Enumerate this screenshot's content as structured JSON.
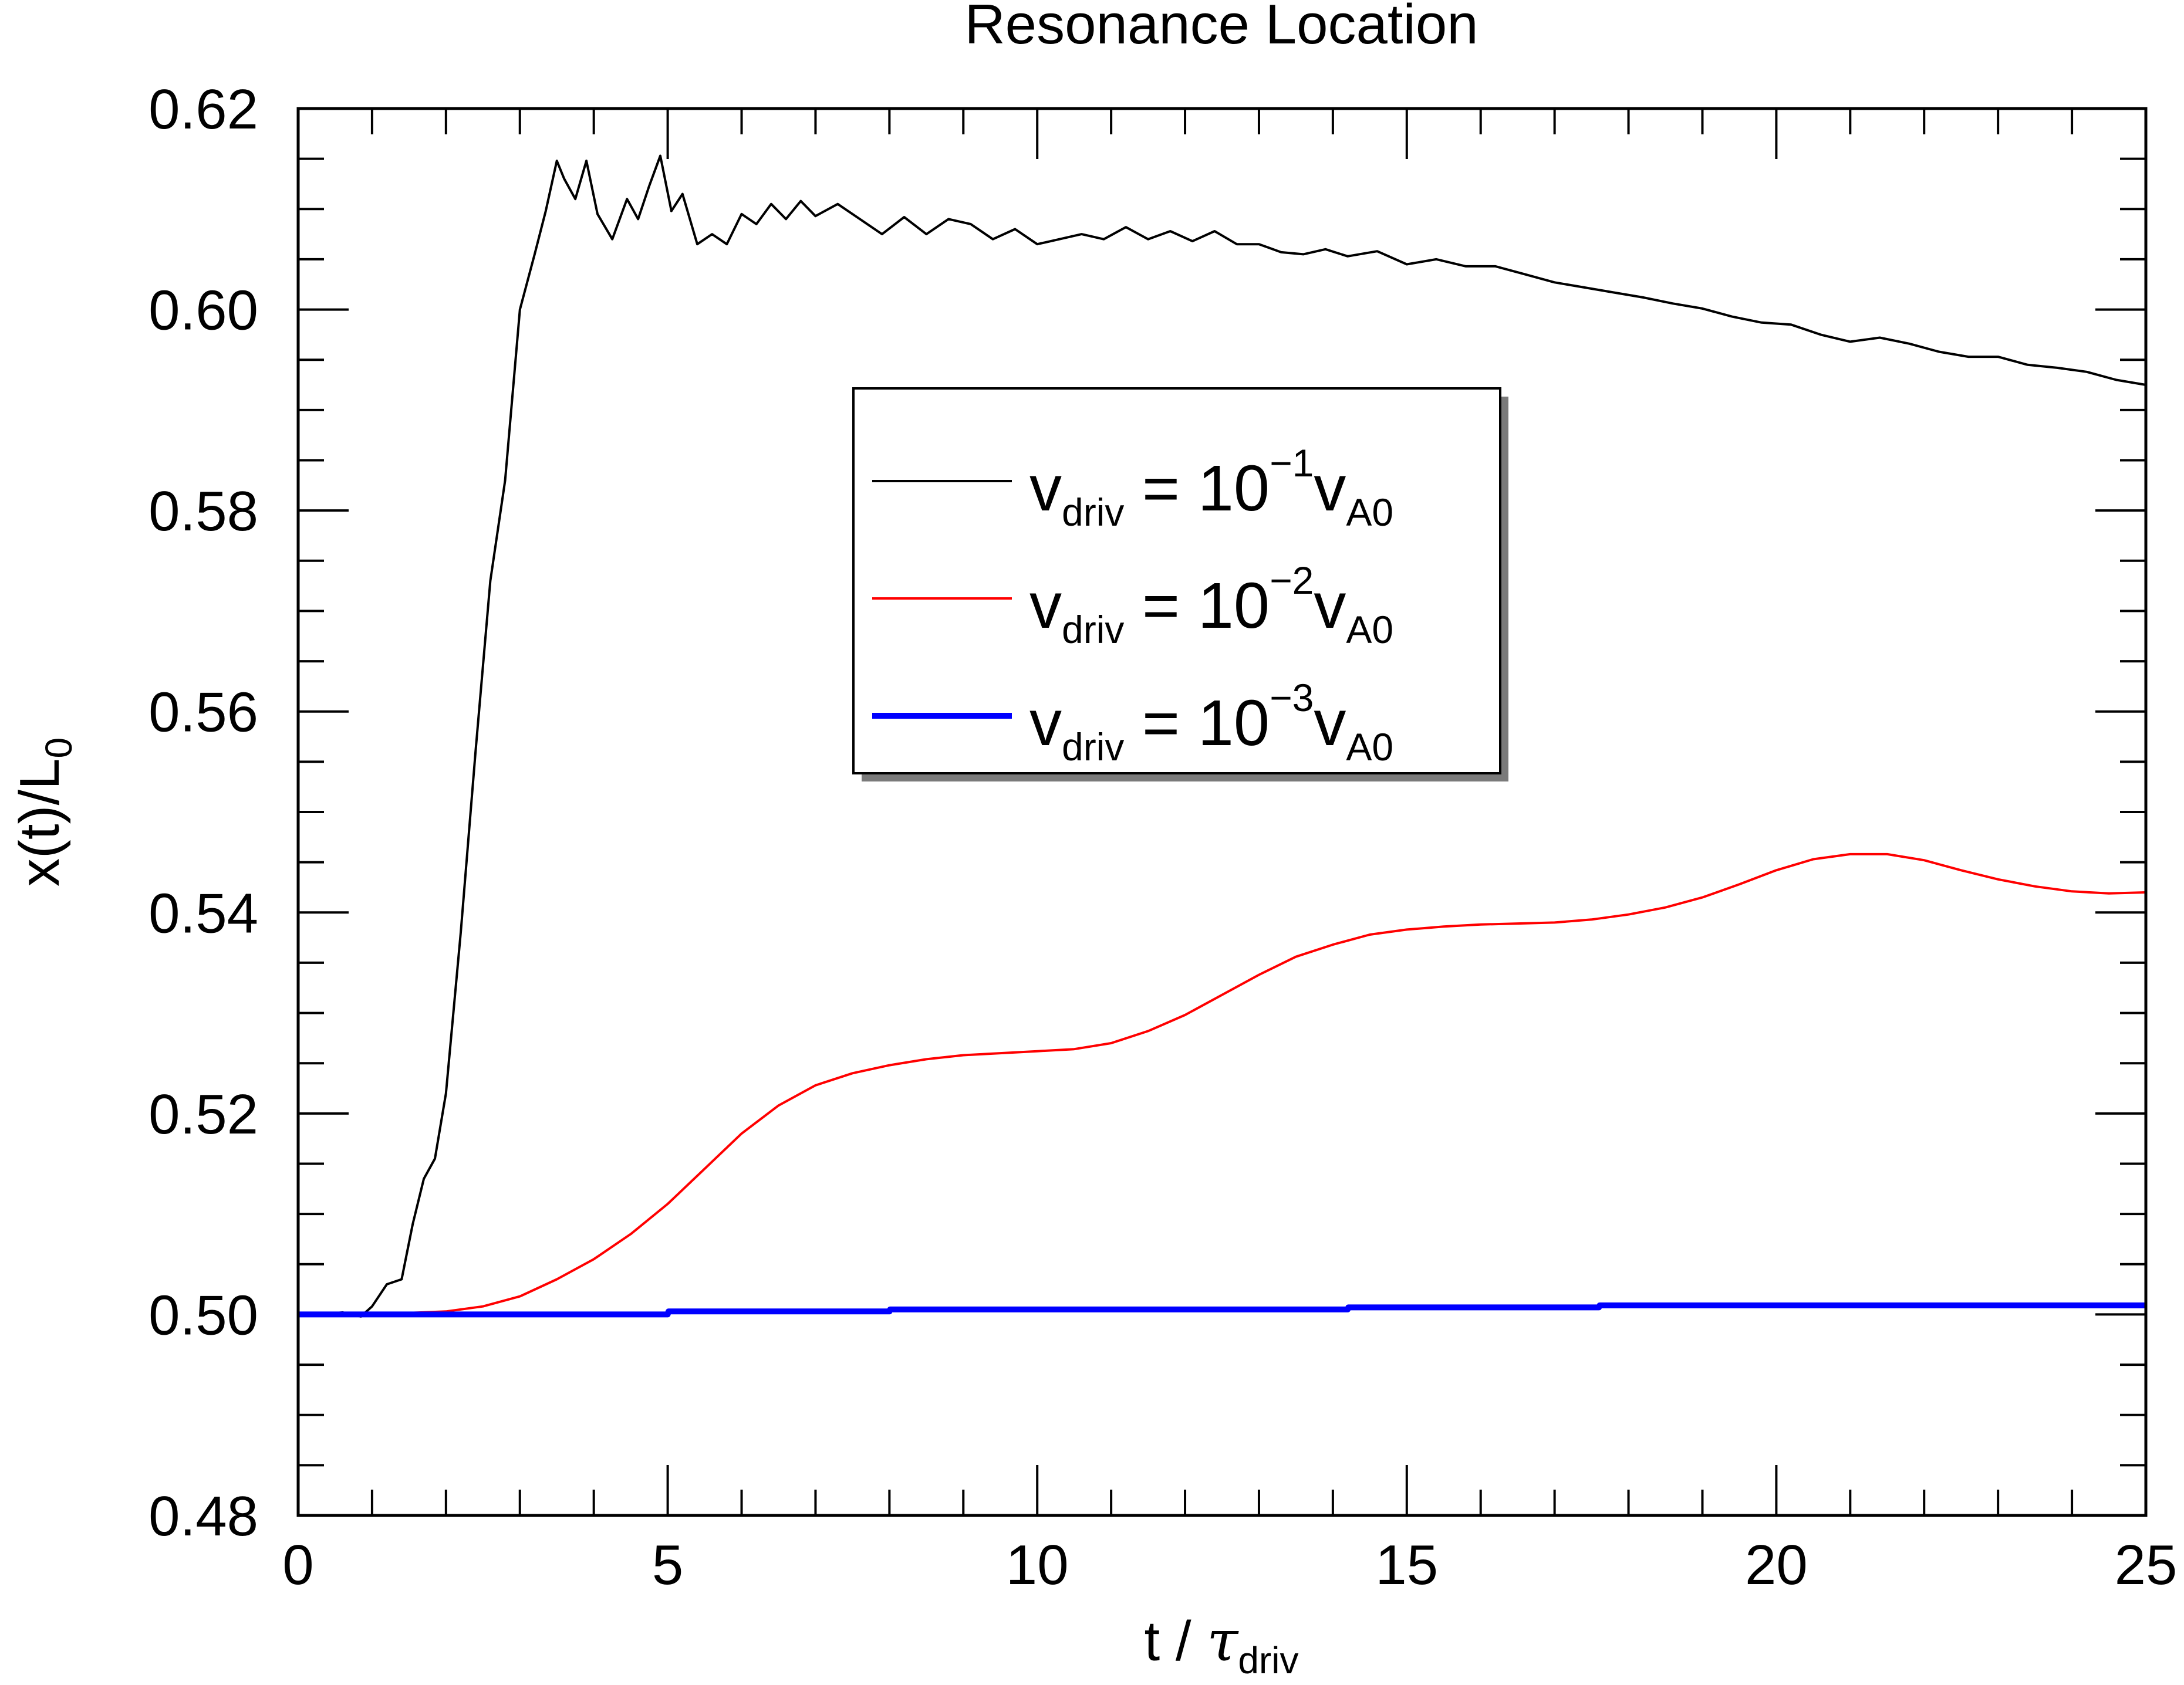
{
  "chart_data": {
    "type": "line",
    "title": "Resonance Location",
    "xlabel": {
      "base": "t / ",
      "symbol": "τ",
      "subscript": "driv"
    },
    "ylabel": {
      "base": "x(t)/L",
      "subscript": "0"
    },
    "xlim": [
      0,
      25
    ],
    "ylim": [
      0.48,
      0.62
    ],
    "x_ticks": [
      0,
      5,
      10,
      15,
      20,
      25
    ],
    "x_tick_labels": [
      "0",
      "5",
      "10",
      "15",
      "20",
      "25"
    ],
    "y_ticks": [
      0.48,
      0.5,
      0.52,
      0.54,
      0.56,
      0.58,
      0.6,
      0.62
    ],
    "y_tick_labels": [
      "0.48",
      "0.50",
      "0.52",
      "0.54",
      "0.56",
      "0.58",
      "0.60",
      "0.62"
    ],
    "grid": false,
    "legend_position": "center-upper",
    "series": [
      {
        "name": "v_driv = 10^-1 v_A0",
        "legend": {
          "v": "v",
          "sub": "driv",
          "eq": " = 10",
          "exp": "−1",
          "v2": "v",
          "sub2": "A0"
        },
        "color": "#000000",
        "x": [
          0,
          0.3,
          0.6,
          0.85,
          1.0,
          1.2,
          1.4,
          1.55,
          1.7,
          1.85,
          2.0,
          2.2,
          2.4,
          2.6,
          2.8,
          3.0,
          3.2,
          3.35,
          3.5,
          3.6,
          3.75,
          3.9,
          4.05,
          4.25,
          4.45,
          4.6,
          4.75,
          4.9,
          5.05,
          5.2,
          5.4,
          5.6,
          5.8,
          6.0,
          6.2,
          6.4,
          6.6,
          6.8,
          7.0,
          7.3,
          7.6,
          7.9,
          8.2,
          8.5,
          8.8,
          9.1,
          9.4,
          9.7,
          10.0,
          10.3,
          10.6,
          10.9,
          11.2,
          11.5,
          11.8,
          12.1,
          12.4,
          12.7,
          13.0,
          13.3,
          13.6,
          13.9,
          14.2,
          14.6,
          15.0,
          15.4,
          15.8,
          16.2,
          16.6,
          17.0,
          17.4,
          17.8,
          18.2,
          18.6,
          19.0,
          19.4,
          19.8,
          20.2,
          20.6,
          21.0,
          21.4,
          21.8,
          22.2,
          22.6,
          23.0,
          23.4,
          23.8,
          24.2,
          24.6,
          25.0
        ],
        "y": [
          0.5,
          0.5,
          0.5002,
          0.4998,
          0.5008,
          0.503,
          0.5035,
          0.509,
          0.5135,
          0.5155,
          0.522,
          0.538,
          0.556,
          0.573,
          0.583,
          0.6,
          0.6055,
          0.6098,
          0.6148,
          0.613,
          0.611,
          0.6148,
          0.6095,
          0.607,
          0.611,
          0.609,
          0.6123,
          0.6153,
          0.6098,
          0.6115,
          0.6065,
          0.6075,
          0.6065,
          0.6095,
          0.6085,
          0.6105,
          0.609,
          0.6108,
          0.6093,
          0.6105,
          0.609,
          0.6075,
          0.6092,
          0.6075,
          0.609,
          0.6085,
          0.607,
          0.608,
          0.6065,
          0.607,
          0.6075,
          0.607,
          0.6082,
          0.607,
          0.6078,
          0.6068,
          0.6078,
          0.6065,
          0.6065,
          0.6057,
          0.6055,
          0.606,
          0.6053,
          0.6058,
          0.6045,
          0.605,
          0.6043,
          0.6043,
          0.6035,
          0.6027,
          0.6022,
          0.6017,
          0.6012,
          0.6006,
          0.6001,
          0.5993,
          0.5987,
          0.5985,
          0.5975,
          0.5968,
          0.5972,
          0.5966,
          0.5958,
          0.5953,
          0.5953,
          0.5945,
          0.5942,
          0.5938,
          0.593,
          0.5925
        ]
      },
      {
        "name": "v_driv = 10^-2 v_A0",
        "legend": {
          "v": "v",
          "sub": "driv",
          "eq": " = 10",
          "exp": "−2",
          "v2": "v",
          "sub2": "A0"
        },
        "color": "#ff0000",
        "x": [
          0,
          1.0,
          2.0,
          2.5,
          3.0,
          3.5,
          4.0,
          4.5,
          5.0,
          5.5,
          6.0,
          6.5,
          7.0,
          7.5,
          8.0,
          8.5,
          9.0,
          9.5,
          10.0,
          10.5,
          11.0,
          11.5,
          12.0,
          12.5,
          13.0,
          13.5,
          14.0,
          14.5,
          15.0,
          15.5,
          16.0,
          16.5,
          17.0,
          17.5,
          18.0,
          18.5,
          19.0,
          19.5,
          20.0,
          20.5,
          21.0,
          21.5,
          22.0,
          22.5,
          23.0,
          23.5,
          24.0,
          24.5,
          25.0
        ],
        "y": [
          0.5,
          0.5,
          0.5003,
          0.5008,
          0.5018,
          0.5035,
          0.5055,
          0.508,
          0.511,
          0.5145,
          0.518,
          0.5208,
          0.5228,
          0.524,
          0.5248,
          0.5254,
          0.5258,
          0.526,
          0.5262,
          0.5264,
          0.527,
          0.5282,
          0.5298,
          0.5318,
          0.5338,
          0.5356,
          0.5368,
          0.5378,
          0.5383,
          0.5386,
          0.5388,
          0.5389,
          0.539,
          0.5393,
          0.5398,
          0.5405,
          0.5415,
          0.5428,
          0.5442,
          0.5453,
          0.5458,
          0.5458,
          0.5452,
          0.5442,
          0.5433,
          0.5426,
          0.5421,
          0.5419,
          0.542
        ]
      },
      {
        "name": "v_driv = 10^-3 v_A0",
        "legend": {
          "v": "v",
          "sub": "driv",
          "eq": " = 10",
          "exp": "−3",
          "v2": "v",
          "sub2": "A0"
        },
        "color": "#0000ff",
        "x": [
          0,
          5.0,
          5.01,
          8.0,
          8.01,
          14.2,
          14.21,
          17.6,
          17.61,
          25.0
        ],
        "y": [
          0.5,
          0.5,
          0.5003,
          0.5003,
          0.5005,
          0.5005,
          0.5007,
          0.5007,
          0.5009,
          0.5009
        ]
      }
    ]
  }
}
